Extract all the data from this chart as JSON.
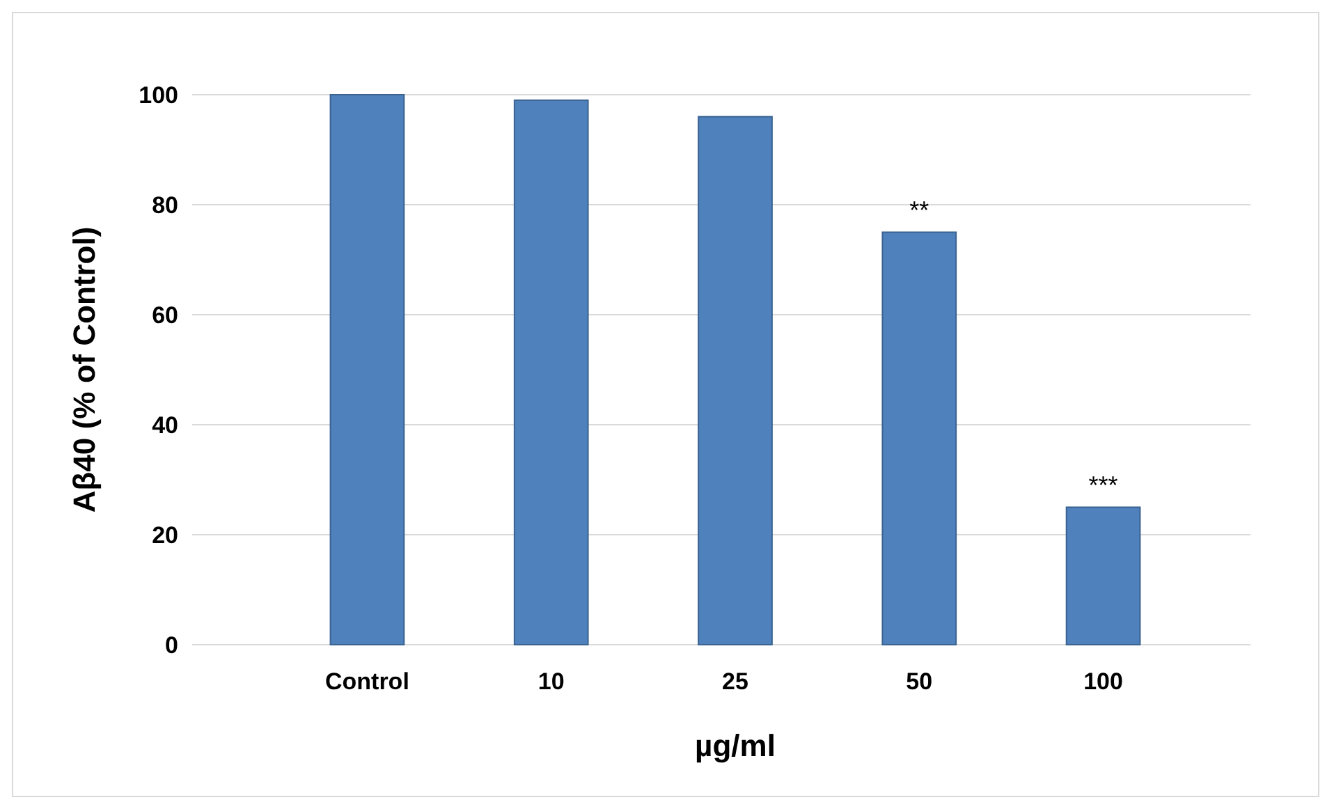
{
  "chart_data": {
    "type": "bar",
    "categories": [
      "Control",
      "10",
      "25",
      "50",
      "100"
    ],
    "values": [
      100,
      99,
      96,
      75,
      25
    ],
    "color": "#4f81bd",
    "ylim": [
      0,
      100
    ],
    "yticks": [
      0,
      20,
      40,
      60,
      80,
      100
    ],
    "grid": "y",
    "xlabel": "µg/ml",
    "ylabel": "Aβ40 (% of Control)",
    "annotations": [
      {
        "text": "**",
        "x": "50",
        "y": 75
      },
      {
        "text": "***",
        "x": "100",
        "y": 25
      }
    ]
  }
}
